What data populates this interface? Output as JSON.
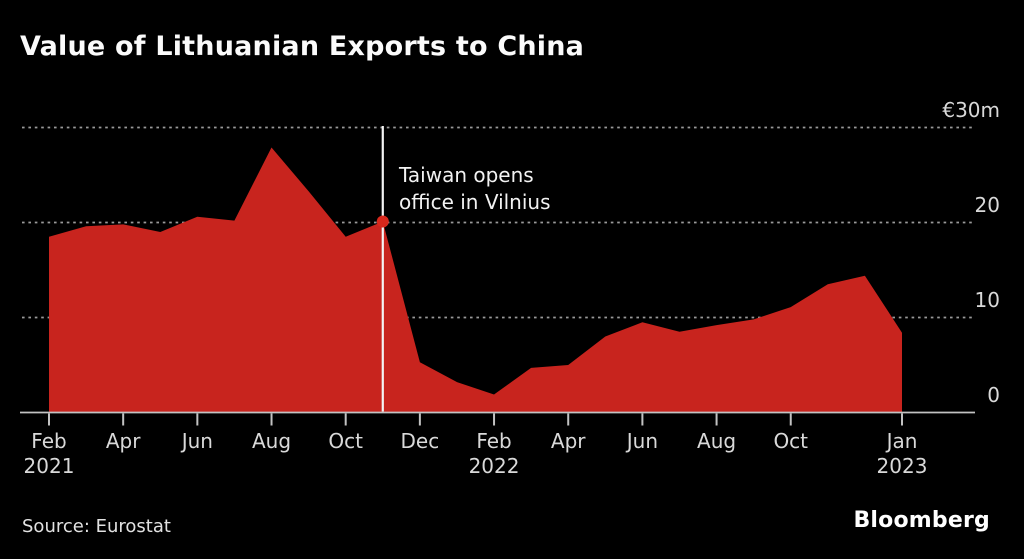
{
  "header": {
    "title": "Value of Lithuanian Exports to China"
  },
  "annotation": {
    "line1": "Taiwan opens",
    "line2": "office in Vilnius"
  },
  "footer": {
    "source": "Source: Eurostat",
    "brand": "Bloomberg"
  },
  "chart_data": {
    "type": "area",
    "title": "Value of Lithuanian Exports to China",
    "unit": "million euros (€m)",
    "x": [
      "Feb 2021",
      "Mar 2021",
      "Apr 2021",
      "May 2021",
      "Jun 2021",
      "Jul 2021",
      "Aug 2021",
      "Sep 2021",
      "Oct 2021",
      "Nov 2021",
      "Dec 2021",
      "Jan 2022",
      "Feb 2022",
      "Mar 2022",
      "Apr 2022",
      "May 2022",
      "Jun 2022",
      "Jul 2022",
      "Aug 2022",
      "Sep 2022",
      "Oct 2022",
      "Nov 2022",
      "Dec 2022",
      "Jan 2023"
    ],
    "values": [
      18.5,
      19.6,
      19.8,
      19.0,
      20.6,
      20.2,
      27.9,
      23.3,
      18.5,
      20.1,
      5.3,
      3.2,
      1.9,
      4.7,
      5.0,
      8.0,
      9.5,
      8.5,
      9.2,
      9.8,
      11.1,
      13.5,
      14.4,
      8.4
    ],
    "ylim": [
      0,
      30
    ],
    "yticks": [
      {
        "value": 30,
        "label": "€30m"
      },
      {
        "value": 20,
        "label": "20"
      },
      {
        "value": 10,
        "label": "10"
      },
      {
        "value": 0,
        "label": "0"
      }
    ],
    "xticks": [
      {
        "index": 0,
        "label": "Feb",
        "sublabel": "2021"
      },
      {
        "index": 2,
        "label": "Apr"
      },
      {
        "index": 4,
        "label": "Jun"
      },
      {
        "index": 6,
        "label": "Aug"
      },
      {
        "index": 8,
        "label": "Oct"
      },
      {
        "index": 10,
        "label": "Dec"
      },
      {
        "index": 12,
        "label": "Feb",
        "sublabel": "2022"
      },
      {
        "index": 14,
        "label": "Apr"
      },
      {
        "index": 16,
        "label": "Jun"
      },
      {
        "index": 18,
        "label": "Aug"
      },
      {
        "index": 20,
        "label": "Oct"
      },
      {
        "index": 23,
        "label": "Jan",
        "sublabel": "2023"
      }
    ],
    "annotation": {
      "month": "Nov 2021",
      "index": 9,
      "value": 20.1,
      "text": "Taiwan opens office in Vilnius"
    },
    "grid": "dotted horizontal gridlines",
    "legend": "none",
    "colors": {
      "background": "#000000",
      "area": "#c8241e",
      "dot": "#d8281c",
      "grid": "#9a9a9a",
      "axis": "#c2c2c2",
      "event_line": "#f4f4f4",
      "text": "#d9d9d9"
    }
  }
}
